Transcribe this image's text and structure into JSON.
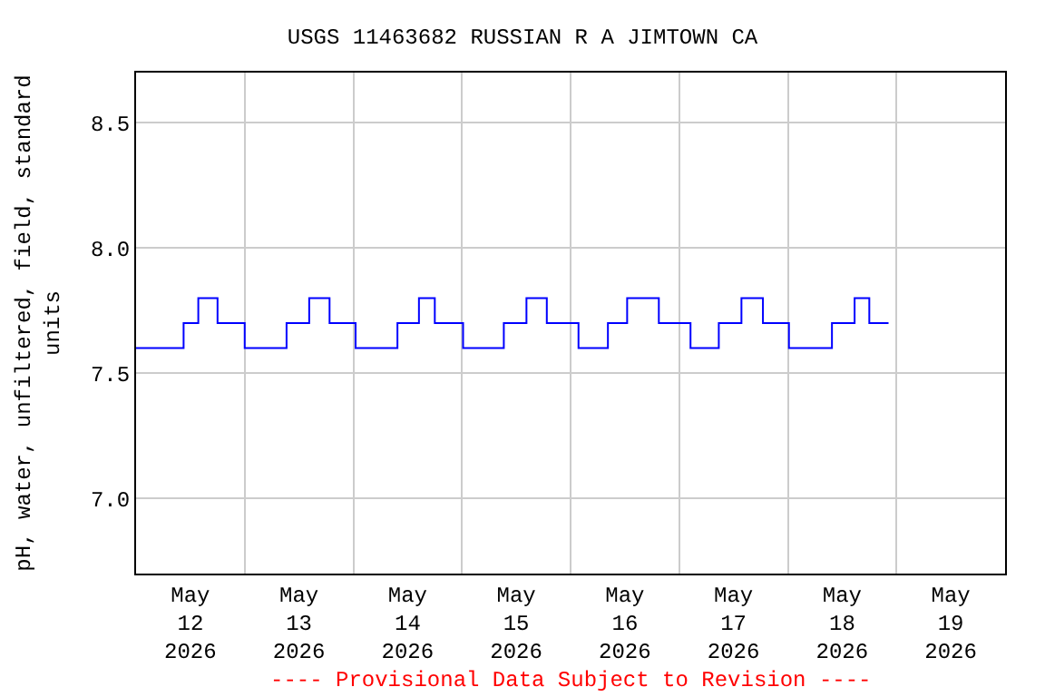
{
  "chart_data": {
    "type": "step",
    "title": "USGS 11463682 RUSSIAN R A JIMTOWN CA",
    "ylabel": "pH, water, unfiltered, field, standard units",
    "annotations": [
      "---- Provisional Data Subject to Revision ----"
    ],
    "x": [
      "2026-05-12T00:00",
      "2026-05-12T10:30",
      "2026-05-12T13:45",
      "2026-05-12T18:00",
      "2026-05-13T00:00",
      "2026-05-13T09:15",
      "2026-05-13T14:15",
      "2026-05-13T18:45",
      "2026-05-14T00:30",
      "2026-05-14T09:45",
      "2026-05-14T14:30",
      "2026-05-14T18:00",
      "2026-05-15T00:15",
      "2026-05-15T09:15",
      "2026-05-15T14:15",
      "2026-05-15T18:45",
      "2026-05-16T01:45",
      "2026-05-16T08:15",
      "2026-05-16T12:30",
      "2026-05-16T19:30",
      "2026-05-17T02:30",
      "2026-05-17T08:45",
      "2026-05-17T13:45",
      "2026-05-17T18:30",
      "2026-05-18T00:15",
      "2026-05-18T09:45",
      "2026-05-18T14:45",
      "2026-05-18T18:00",
      "2026-05-18T22:15"
    ],
    "series": [
      {
        "color": "#0000ff",
        "values": [
          7.6,
          7.7,
          7.8,
          7.7,
          7.6,
          7.7,
          7.8,
          7.7,
          7.6,
          7.7,
          7.8,
          7.7,
          7.6,
          7.7,
          7.8,
          7.7,
          7.6,
          7.7,
          7.8,
          7.7,
          7.6,
          7.7,
          7.8,
          7.7,
          7.6,
          7.7,
          7.8,
          7.7,
          7.7
        ]
      }
    ],
    "xlim": [
      "2026-05-12T00:00",
      "2026-05-20T00:00"
    ],
    "xticks": [
      {
        "value": "2026-05-12T12:00",
        "label": "May\n12\n2026"
      },
      {
        "value": "2026-05-13T12:00",
        "label": "May\n13\n2026"
      },
      {
        "value": "2026-05-14T12:00",
        "label": "May\n14\n2026"
      },
      {
        "value": "2026-05-15T12:00",
        "label": "May\n15\n2026"
      },
      {
        "value": "2026-05-16T12:00",
        "label": "May\n16\n2026"
      },
      {
        "value": "2026-05-17T12:00",
        "label": "May\n17\n2026"
      },
      {
        "value": "2026-05-18T12:00",
        "label": "May\n18\n2026"
      },
      {
        "value": "2026-05-19T12:00",
        "label": "May\n19\n2026"
      },
      {
        "value": "2026-05-13T00:00",
        "label": null
      },
      {
        "value": "2026-05-14T00:00",
        "label": null
      },
      {
        "value": "2026-05-15T00:00",
        "label": null
      },
      {
        "value": "2026-05-16T00:00",
        "label": null
      },
      {
        "value": "2026-05-17T00:00",
        "label": null
      },
      {
        "value": "2026-05-18T00:00",
        "label": null
      },
      {
        "value": "2026-05-19T00:00",
        "label": null
      }
    ],
    "ylim": [
      6.7,
      8.7
    ],
    "yticks": [
      {
        "value": 7.0,
        "label": "7.0"
      },
      {
        "value": 7.5,
        "label": "7.5"
      },
      {
        "value": 8.0,
        "label": "8.0"
      },
      {
        "value": 8.5,
        "label": "8.5"
      }
    ],
    "grid": true,
    "legend": false
  }
}
